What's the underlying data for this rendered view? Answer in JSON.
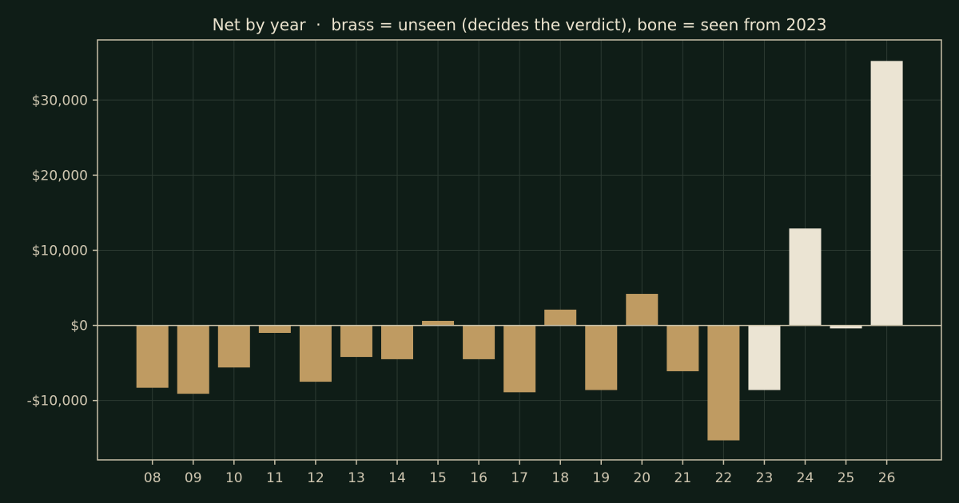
{
  "colors": {
    "background": "#0f1d17",
    "brass": "#bf9b62",
    "bone": "#ebe4d3",
    "axis": "#c8c0a8",
    "grid": "#2c3a32",
    "text": "#ece4cf"
  },
  "chart_data": {
    "type": "bar",
    "title": "Net by year  ·  brass = unseen (decides the verdict), bone = seen from 2023",
    "xlabel": "",
    "ylabel": "",
    "categories": [
      "08",
      "09",
      "10",
      "11",
      "12",
      "13",
      "14",
      "15",
      "16",
      "17",
      "18",
      "19",
      "20",
      "21",
      "22",
      "23",
      "24",
      "25",
      "26"
    ],
    "values": [
      -8300,
      -9100,
      -5600,
      -1000,
      -7500,
      -4200,
      -4500,
      600,
      -4500,
      -8900,
      2100,
      -8600,
      4200,
      -6100,
      -15300,
      -8600,
      12900,
      -400,
      35200
    ],
    "groups": [
      "unseen",
      "unseen",
      "unseen",
      "unseen",
      "unseen",
      "unseen",
      "unseen",
      "unseen",
      "unseen",
      "unseen",
      "unseen",
      "unseen",
      "unseen",
      "unseen",
      "unseen",
      "seen",
      "seen",
      "seen",
      "seen"
    ],
    "group_colors": {
      "unseen": "brass",
      "seen": "bone"
    },
    "ylim": [
      -17900,
      38000
    ],
    "yticks": [
      -10000,
      0,
      10000,
      20000,
      30000
    ],
    "ytick_labels": [
      "-$10,000",
      "$0",
      "$10,000",
      "$20,000",
      "$30,000"
    ],
    "grid": true,
    "legend": "none"
  }
}
